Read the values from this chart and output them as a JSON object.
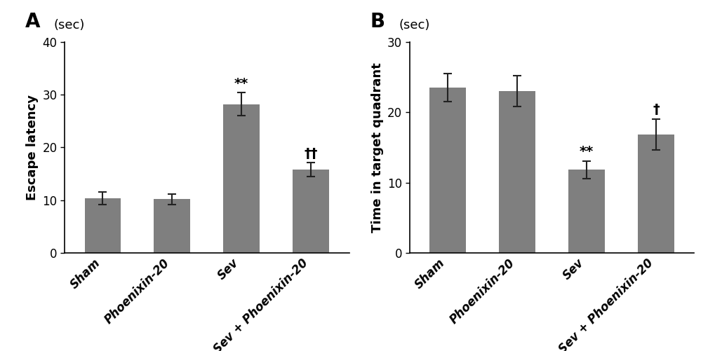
{
  "panel_A": {
    "title": "A",
    "sec_label": "(sec)",
    "ylabel": "Escape latency",
    "categories": [
      "Sham",
      "Phoenixin-20",
      "Sev",
      "Sev + Phoenixin-20"
    ],
    "values": [
      10.4,
      10.2,
      28.2,
      15.8
    ],
    "errors": [
      1.2,
      1.0,
      2.2,
      1.3
    ],
    "ylim": [
      0,
      40
    ],
    "yticks": [
      0,
      10,
      20,
      30,
      40
    ],
    "annotations": [
      "",
      "",
      "**",
      "††"
    ],
    "bar_color": "#7f7f7f",
    "error_color": "#222222"
  },
  "panel_B": {
    "title": "B",
    "sec_label": "(sec)",
    "ylabel": "Time in target quadrant",
    "categories": [
      "Sham",
      "Phoenixin-20",
      "Sev",
      "Sev + Phoenixin-20"
    ],
    "values": [
      23.5,
      23.0,
      11.8,
      16.8
    ],
    "errors": [
      2.0,
      2.2,
      1.2,
      2.2
    ],
    "ylim": [
      0,
      30
    ],
    "yticks": [
      0,
      10,
      20,
      30
    ],
    "annotations": [
      "",
      "",
      "**",
      "†"
    ],
    "bar_color": "#7f7f7f",
    "error_color": "#222222"
  },
  "annotation_color": "#000000",
  "tick_label_color": "#000000",
  "ylabel_fontsize": 13,
  "tick_fontsize": 12,
  "annot_fontsize": 14,
  "panel_label_fontsize": 20,
  "sec_fontsize": 13,
  "bar_width": 0.52
}
